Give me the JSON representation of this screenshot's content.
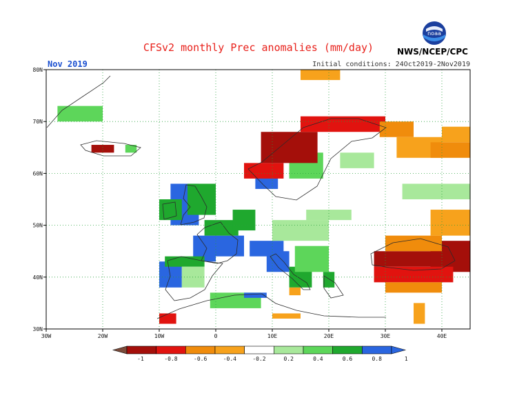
{
  "title": "CFSv2 monthly Prec anomalies (mm/day)",
  "organization": "NWS/NCEP/CPC",
  "logo_text": "noaa",
  "month_label": "Nov 2019",
  "initial_conditions": "Initial conditions: 24Oct2019-2Nov2019",
  "map": {
    "lon_range": [
      -30,
      45
    ],
    "lat_range": [
      30,
      80
    ],
    "lat_ticks": [
      {
        "value": 30,
        "label": "30N"
      },
      {
        "value": 40,
        "label": "40N"
      },
      {
        "value": 50,
        "label": "50N"
      },
      {
        "value": 60,
        "label": "60N"
      },
      {
        "value": 70,
        "label": "70N"
      },
      {
        "value": 80,
        "label": "80N"
      }
    ],
    "lon_ticks": [
      {
        "value": -30,
        "label": "30W"
      },
      {
        "value": -20,
        "label": "20W"
      },
      {
        "value": -10,
        "label": "10W"
      },
      {
        "value": 0,
        "label": "0"
      },
      {
        "value": 10,
        "label": "10E"
      },
      {
        "value": 20,
        "label": "20E"
      },
      {
        "value": 30,
        "label": "30E"
      },
      {
        "value": 40,
        "label": "40E"
      }
    ],
    "grid": true,
    "anomaly_regions": [
      {
        "name": "British Isles west",
        "class": 9,
        "lon": [
          -8,
          -3
        ],
        "lat": [
          50,
          58
        ]
      },
      {
        "name": "Scotland/England",
        "class": 8,
        "lon": [
          -5,
          0
        ],
        "lat": [
          52,
          58
        ]
      },
      {
        "name": "Ireland",
        "class": 8,
        "lon": [
          -10,
          -6
        ],
        "lat": [
          51,
          55
        ]
      },
      {
        "name": "France west",
        "class": 9,
        "lon": [
          -4,
          0
        ],
        "lat": [
          43,
          48
        ]
      },
      {
        "name": "France central",
        "class": 9,
        "lon": [
          0,
          5
        ],
        "lat": [
          44,
          48
        ]
      },
      {
        "name": "France north",
        "class": 8,
        "lon": [
          -2,
          4
        ],
        "lat": [
          48,
          51
        ]
      },
      {
        "name": "Benelux",
        "class": 8,
        "lon": [
          3,
          7
        ],
        "lat": [
          49,
          53
        ]
      },
      {
        "name": "Alps",
        "class": 9,
        "lon": [
          6,
          12
        ],
        "lat": [
          44,
          47
        ]
      },
      {
        "name": "Italy",
        "class": 9,
        "lon": [
          9,
          13
        ],
        "lat": [
          41,
          45
        ]
      },
      {
        "name": "Italy south",
        "class": 8,
        "lon": [
          13,
          17
        ],
        "lat": [
          38,
          42
        ]
      },
      {
        "name": "Balkans",
        "class": 7,
        "lon": [
          14,
          20
        ],
        "lat": [
          41,
          46
        ]
      },
      {
        "name": "Greece west",
        "class": 8,
        "lon": [
          19,
          21
        ],
        "lat": [
          38,
          41
        ]
      },
      {
        "name": "Iberia west",
        "class": 9,
        "lon": [
          -10,
          -6
        ],
        "lat": [
          38,
          43
        ]
      },
      {
        "name": "Iberia north",
        "class": 8,
        "lon": [
          -9,
          -2
        ],
        "lat": [
          42,
          44
        ]
      },
      {
        "name": "Iberia central",
        "class": 6,
        "lon": [
          -6,
          -2
        ],
        "lat": [
          38,
          42
        ]
      },
      {
        "name": "North Africa",
        "class": 7,
        "lon": [
          -1,
          8
        ],
        "lat": [
          34,
          37
        ]
      },
      {
        "name": "Tunisia",
        "class": 9,
        "lon": [
          5,
          9
        ],
        "lat": [
          36,
          37
        ]
      },
      {
        "name": "Morocco",
        "class": 2,
        "lon": [
          -10,
          -7
        ],
        "lat": [
          31,
          33
        ]
      },
      {
        "name": "Sweden south",
        "class": 9,
        "lon": [
          7,
          11
        ],
        "lat": [
          57,
          60
        ]
      },
      {
        "name": "Sweden east",
        "class": 7,
        "lon": [
          13,
          19
        ],
        "lat": [
          59,
          64
        ]
      },
      {
        "name": "Finland",
        "class": 6,
        "lon": [
          22,
          28
        ],
        "lat": [
          61,
          64
        ]
      },
      {
        "name": "Norway west",
        "class": 2,
        "lon": [
          5,
          12
        ],
        "lat": [
          59,
          62
        ]
      },
      {
        "name": "Norway coast",
        "class": 1,
        "lon": [
          8,
          18
        ],
        "lat": [
          62,
          68
        ]
      },
      {
        "name": "Northern Scandinavia",
        "class": 2,
        "lon": [
          15,
          30
        ],
        "lat": [
          68,
          71
        ]
      },
      {
        "name": "Kola",
        "class": 3,
        "lon": [
          29,
          35
        ],
        "lat": [
          67,
          70
        ]
      },
      {
        "name": "Barents coast",
        "class": 4,
        "lon": [
          32,
          40
        ],
        "lat": [
          63,
          67
        ]
      },
      {
        "name": "NW Russia east",
        "class": 3,
        "lon": [
          38,
          45
        ],
        "lat": [
          63,
          66
        ]
      },
      {
        "name": "Russia north",
        "class": 4,
        "lon": [
          40,
          45
        ],
        "lat": [
          66,
          69
        ]
      },
      {
        "name": "Black Sea",
        "class": 1,
        "lon": [
          28,
          42
        ],
        "lat": [
          42,
          45
        ]
      },
      {
        "name": "Caucasus",
        "class": 1,
        "lon": [
          38,
          45
        ],
        "lat": [
          41,
          47
        ]
      },
      {
        "name": "Anatolia north",
        "class": 2,
        "lon": [
          28,
          42
        ],
        "lat": [
          39,
          42
        ]
      },
      {
        "name": "Anatolia south",
        "class": 3,
        "lon": [
          30,
          40
        ],
        "lat": [
          37,
          39
        ]
      },
      {
        "name": "Ukraine south",
        "class": 3,
        "lon": [
          30,
          40
        ],
        "lat": [
          45,
          48
        ]
      },
      {
        "name": "Russia south",
        "class": 4,
        "lon": [
          38,
          45
        ],
        "lat": [
          48,
          53
        ]
      },
      {
        "name": "Central Europe",
        "class": 6,
        "lon": [
          10,
          20
        ],
        "lat": [
          47,
          51
        ]
      },
      {
        "name": "Poland",
        "class": 6,
        "lon": [
          16,
          24
        ],
        "lat": [
          51,
          53
        ]
      },
      {
        "name": "Russia central",
        "class": 6,
        "lon": [
          33,
          45
        ],
        "lat": [
          55,
          58
        ]
      },
      {
        "name": "Iceland",
        "class": 1,
        "lon": [
          -22,
          -18
        ],
        "lat": [
          64,
          65.5
        ]
      },
      {
        "name": "Iceland east",
        "class": 7,
        "lon": [
          -16,
          -14
        ],
        "lat": [
          64,
          65.5
        ]
      },
      {
        "name": "Greenland",
        "class": 7,
        "lon": [
          -28,
          -20
        ],
        "lat": [
          70,
          73
        ]
      },
      {
        "name": "Svalbard",
        "class": 4,
        "lon": [
          15,
          22
        ],
        "lat": [
          78,
          80
        ]
      },
      {
        "name": "Levant",
        "class": 4,
        "lon": [
          35,
          37
        ],
        "lat": [
          31,
          35
        ]
      },
      {
        "name": "Sicily",
        "class": 4,
        "lon": [
          13,
          15
        ],
        "lat": [
          36.5,
          38
        ]
      },
      {
        "name": "Libya",
        "class": 4,
        "lon": [
          10,
          15
        ],
        "lat": [
          32,
          33
        ]
      }
    ]
  },
  "colorbar": {
    "tick_labels": [
      "-1",
      "-0.8",
      "-0.6",
      "-0.4",
      "-0.2",
      "0.2",
      "0.4",
      "0.6",
      "0.8",
      "1"
    ],
    "colors": [
      "#7b4b3a",
      "#a40f0a",
      "#e1130f",
      "#f08c0c",
      "#f7a21c",
      "#ffffff",
      "#a8e89b",
      "#5dd65a",
      "#1fa82e",
      "#2a66e0",
      "#2a66e0"
    ]
  }
}
